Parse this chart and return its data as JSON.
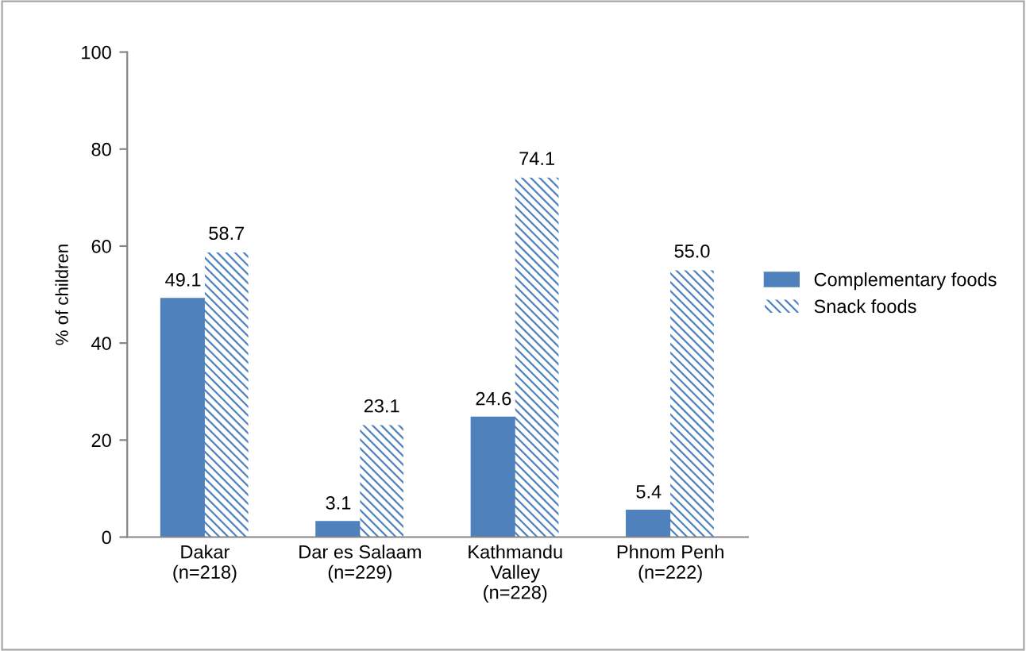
{
  "chart_data": {
    "type": "bar",
    "ylabel": "% of children",
    "categories": [
      "Dakar\n(n=218)",
      "Dar es Salaam\n(n=229)",
      "Kathmandu\nValley\n(n=228)",
      "Phnom Penh\n(n=222)"
    ],
    "series": [
      {
        "name": "Complementary foods",
        "color": "#4f81bd",
        "values": [
          49.1,
          3.1,
          24.6,
          5.4
        ],
        "value_labels": [
          "49.1",
          "3.1",
          "24.6",
          "5.4"
        ]
      },
      {
        "name": "Snack foods",
        "color": "#4f81bd",
        "values": [
          58.7,
          23.1,
          74.1,
          55.0
        ],
        "value_labels": [
          "58.7",
          "23.1",
          "74.1",
          "55.0"
        ]
      }
    ],
    "ylim": [
      0,
      100
    ],
    "yticks": [
      0,
      20,
      40,
      60,
      80,
      100
    ],
    "grid": false,
    "legend": "right"
  }
}
